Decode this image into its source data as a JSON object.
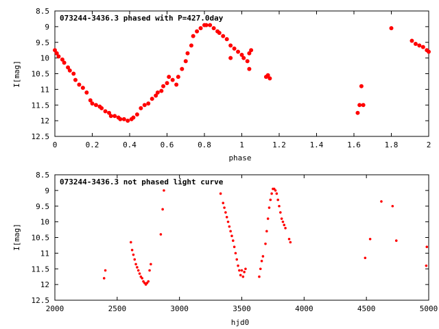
{
  "chart_data": [
    {
      "type": "scatter",
      "title": "073244-3436.3 phased with P=427.0day",
      "xlabel": "phase",
      "ylabel": "I[mag]",
      "xlim": [
        0,
        2
      ],
      "ylim": [
        12.5,
        8.5
      ],
      "y_inverted": true,
      "grid": false,
      "x_ticks": [
        "0",
        "0.2",
        "0.4",
        "0.6",
        "0.8",
        "1",
        "1.2",
        "1.4",
        "1.6",
        "1.8",
        "2"
      ],
      "x_tick_values": [
        0,
        0.2,
        0.4,
        0.6,
        0.8,
        1.0,
        1.2,
        1.4,
        1.6,
        1.8,
        2.0
      ],
      "y_ticks": [
        "8.5",
        "9",
        "9.5",
        "10",
        "10.5",
        "11",
        "11.5",
        "12",
        "12.5"
      ],
      "y_tick_values": [
        8.5,
        9,
        9.5,
        10,
        10.5,
        11,
        11.5,
        12,
        12.5
      ],
      "marker_color": "#ff0000",
      "series": [
        {
          "x": [
            0.0,
            0.01,
            0.02,
            0.04,
            0.05,
            0.07,
            0.08,
            0.1,
            0.11,
            0.13,
            0.15,
            0.17,
            0.19,
            0.2,
            0.22,
            0.24,
            0.25,
            0.27,
            0.29,
            0.3,
            0.32,
            0.34,
            0.35,
            0.37,
            0.39,
            0.41,
            0.42,
            0.44,
            0.46,
            0.48,
            0.5,
            0.52,
            0.54,
            0.55,
            0.57,
            0.58,
            0.6,
            0.61,
            0.63,
            0.65,
            0.66,
            0.68,
            0.7,
            0.71,
            0.73,
            0.74,
            0.76,
            0.78,
            0.8,
            0.81,
            0.83,
            0.85,
            0.87,
            0.88,
            0.9,
            0.92,
            0.94,
            0.96,
            0.98,
            1.0,
            1.01,
            1.03,
            1.04,
            1.05,
            1.13,
            1.14,
            1.15,
            0.94,
            1.04,
            1.62,
            1.63,
            1.64,
            1.65,
            1.8,
            1.91,
            1.93,
            1.95,
            1.97,
            1.99,
            2.0
          ],
          "y": [
            9.75,
            9.85,
            9.95,
            10.05,
            10.15,
            10.3,
            10.4,
            10.5,
            10.7,
            10.85,
            10.95,
            11.1,
            11.35,
            11.45,
            11.5,
            11.55,
            11.6,
            11.7,
            11.75,
            11.85,
            11.85,
            11.9,
            11.95,
            11.95,
            12.0,
            11.95,
            11.9,
            11.8,
            11.6,
            11.5,
            11.45,
            11.3,
            11.2,
            11.1,
            11.05,
            10.9,
            10.8,
            10.6,
            10.7,
            10.85,
            10.6,
            10.35,
            10.1,
            9.85,
            9.6,
            9.3,
            9.15,
            9.05,
            8.95,
            8.95,
            8.95,
            9.05,
            9.15,
            9.2,
            9.3,
            9.4,
            9.6,
            9.7,
            9.8,
            9.9,
            10.0,
            10.1,
            9.85,
            9.75,
            10.6,
            10.55,
            10.65,
            10.0,
            10.35,
            11.75,
            11.5,
            10.9,
            11.5,
            9.05,
            9.45,
            9.55,
            9.6,
            9.65,
            9.75,
            9.8
          ]
        }
      ]
    },
    {
      "type": "scatter",
      "title": "073244-3436.3 not phased light curve",
      "xlabel": "hjd0",
      "ylabel": "I[mag]",
      "xlim": [
        2000,
        5000
      ],
      "ylim": [
        12.5,
        8.5
      ],
      "y_inverted": true,
      "grid": false,
      "x_ticks": [
        "2000",
        "2500",
        "3000",
        "3500",
        "4000",
        "4500",
        "5000"
      ],
      "x_tick_values": [
        2000,
        2500,
        3000,
        3500,
        4000,
        4500,
        5000
      ],
      "y_ticks": [
        "8.5",
        "9",
        "9.5",
        "10",
        "10.5",
        "11",
        "11.5",
        "12",
        "12.5"
      ],
      "y_tick_values": [
        8.5,
        9,
        9.5,
        10,
        10.5,
        11,
        11.5,
        12,
        12.5
      ],
      "marker_color": "#ff0000",
      "series": [
        {
          "x": [
            2395,
            2405,
            2610,
            2620,
            2630,
            2640,
            2650,
            2660,
            2670,
            2680,
            2690,
            2700,
            2710,
            2720,
            2730,
            2740,
            2750,
            2760,
            2770,
            2850,
            2865,
            2875,
            3330,
            3350,
            3360,
            3370,
            3380,
            3390,
            3400,
            3410,
            3420,
            3430,
            3440,
            3450,
            3460,
            3470,
            3480,
            3490,
            3500,
            3510,
            3520,
            3530,
            3640,
            3650,
            3660,
            3670,
            3690,
            3700,
            3710,
            3720,
            3730,
            3740,
            3750,
            3760,
            3770,
            3780,
            3790,
            3800,
            3810,
            3820,
            3830,
            3840,
            3850,
            3880,
            3890,
            4490,
            4530,
            4620,
            4710,
            4740,
            4980,
            4985
          ],
          "y": [
            11.8,
            11.55,
            10.65,
            10.9,
            11.05,
            11.2,
            11.35,
            11.45,
            11.55,
            11.65,
            11.75,
            11.8,
            11.9,
            11.95,
            12.0,
            11.95,
            11.9,
            11.55,
            11.35,
            10.4,
            9.6,
            9.0,
            9.1,
            9.4,
            9.55,
            9.7,
            9.85,
            10.0,
            10.15,
            10.3,
            10.45,
            10.6,
            10.8,
            11.0,
            11.2,
            11.4,
            11.55,
            11.7,
            11.55,
            11.75,
            11.6,
            11.5,
            11.75,
            11.5,
            11.25,
            11.1,
            10.7,
            10.3,
            9.9,
            9.55,
            9.3,
            9.1,
            8.95,
            8.95,
            9.0,
            9.1,
            9.3,
            9.5,
            9.7,
            9.9,
            10.0,
            10.1,
            10.2,
            10.55,
            10.65,
            11.15,
            10.55,
            9.35,
            9.5,
            10.6,
            11.4,
            10.8
          ]
        }
      ]
    }
  ]
}
